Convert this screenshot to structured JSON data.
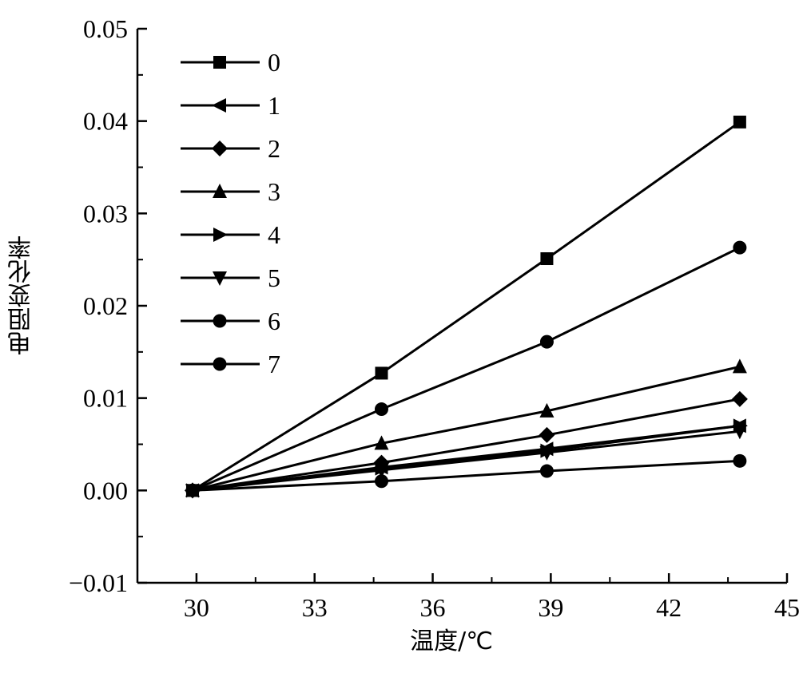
{
  "chart_data": {
    "type": "line",
    "title": "",
    "xlabel": "温度/℃",
    "ylabel": "电阻变化率",
    "xlim": [
      28.5,
      45
    ],
    "ylim": [
      -0.01,
      0.05
    ],
    "xticks": [
      "30",
      "33",
      "36",
      "39",
      "42",
      "45"
    ],
    "yticks": [
      "−0.01",
      "0.00",
      "0.01",
      "0.02",
      "0.03",
      "0.04",
      "0.05"
    ],
    "grid": false,
    "legend_position": "top-left",
    "x": [
      29.9,
      34.7,
      38.9,
      43.8
    ],
    "series": [
      {
        "name": "0",
        "marker": "square",
        "values": [
          0,
          0.0127,
          0.0251,
          0.0399
        ]
      },
      {
        "name": "1",
        "marker": "triangle-left",
        "values": [
          0,
          0.0025,
          0.0045,
          0.007
        ]
      },
      {
        "name": "2",
        "marker": "diamond",
        "values": [
          0,
          0.003,
          0.006,
          0.0099
        ]
      },
      {
        "name": "3",
        "marker": "triangle-up",
        "values": [
          0,
          0.0051,
          0.0086,
          0.0134
        ]
      },
      {
        "name": "4",
        "marker": "triangle-right",
        "values": [
          0,
          0.0024,
          0.0043,
          0.007
        ]
      },
      {
        "name": "5",
        "marker": "triangle-down",
        "values": [
          0,
          0.0022,
          0.0041,
          0.0064
        ]
      },
      {
        "name": "6",
        "marker": "circle",
        "values": [
          0,
          0.0088,
          0.0161,
          0.0263
        ]
      },
      {
        "name": "7",
        "marker": "circle",
        "values": [
          0,
          0.001,
          0.0021,
          0.0032
        ]
      }
    ]
  }
}
